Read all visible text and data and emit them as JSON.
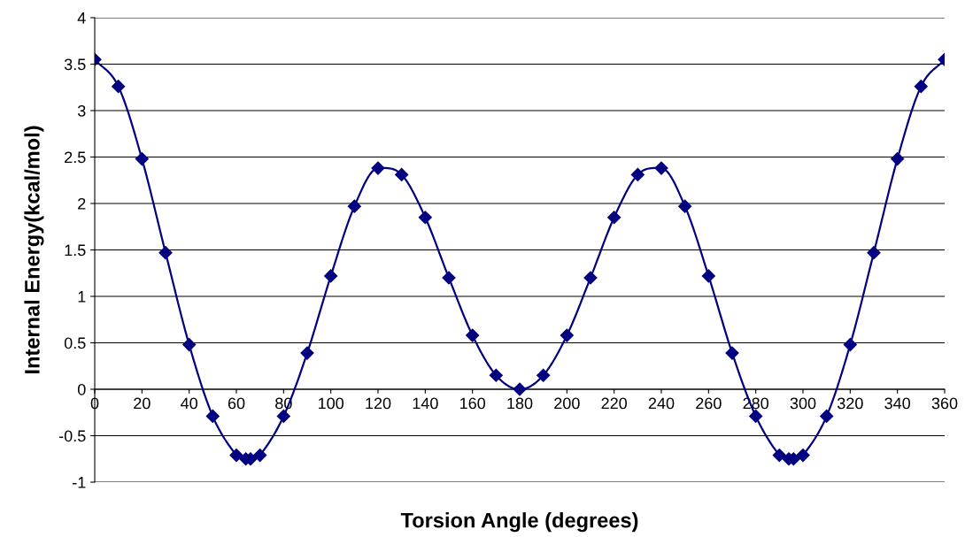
{
  "chart_data": {
    "type": "line",
    "xlabel": "Torsion Angle (degrees)",
    "ylabel": "Internal Energy(kcal/mol)",
    "x": [
      0,
      10,
      20,
      30,
      40,
      50,
      60,
      64,
      66,
      70,
      80,
      90,
      100,
      110,
      120,
      130,
      140,
      150,
      160,
      170,
      180,
      190,
      200,
      210,
      220,
      230,
      240,
      250,
      260,
      270,
      280,
      290,
      294,
      296,
      300,
      310,
      320,
      330,
      340,
      350,
      360
    ],
    "series": [
      {
        "color": "#000080",
        "values": [
          3.55,
          3.26,
          2.48,
          1.47,
          0.48,
          -0.29,
          -0.71,
          -0.75,
          -0.75,
          -0.71,
          -0.29,
          0.39,
          1.22,
          1.97,
          2.38,
          2.31,
          1.85,
          1.2,
          0.58,
          0.15,
          0.0,
          0.15,
          0.58,
          1.2,
          1.85,
          2.31,
          2.38,
          1.97,
          1.22,
          0.39,
          -0.29,
          -0.71,
          -0.75,
          -0.75,
          -0.71,
          -0.29,
          0.48,
          1.47,
          2.48,
          3.26,
          3.55
        ]
      }
    ],
    "xlim": [
      0,
      360
    ],
    "xticks": [
      0,
      20,
      40,
      60,
      80,
      100,
      120,
      140,
      160,
      180,
      200,
      220,
      240,
      260,
      280,
      300,
      320,
      340,
      360
    ],
    "ylim": [
      -1,
      4
    ],
    "yticks": [
      -1,
      -0.5,
      0,
      0.5,
      1,
      1.5,
      2,
      2.5,
      3,
      3.5,
      4
    ],
    "grid": "y",
    "marker": "diamond",
    "line_style": "solid"
  }
}
